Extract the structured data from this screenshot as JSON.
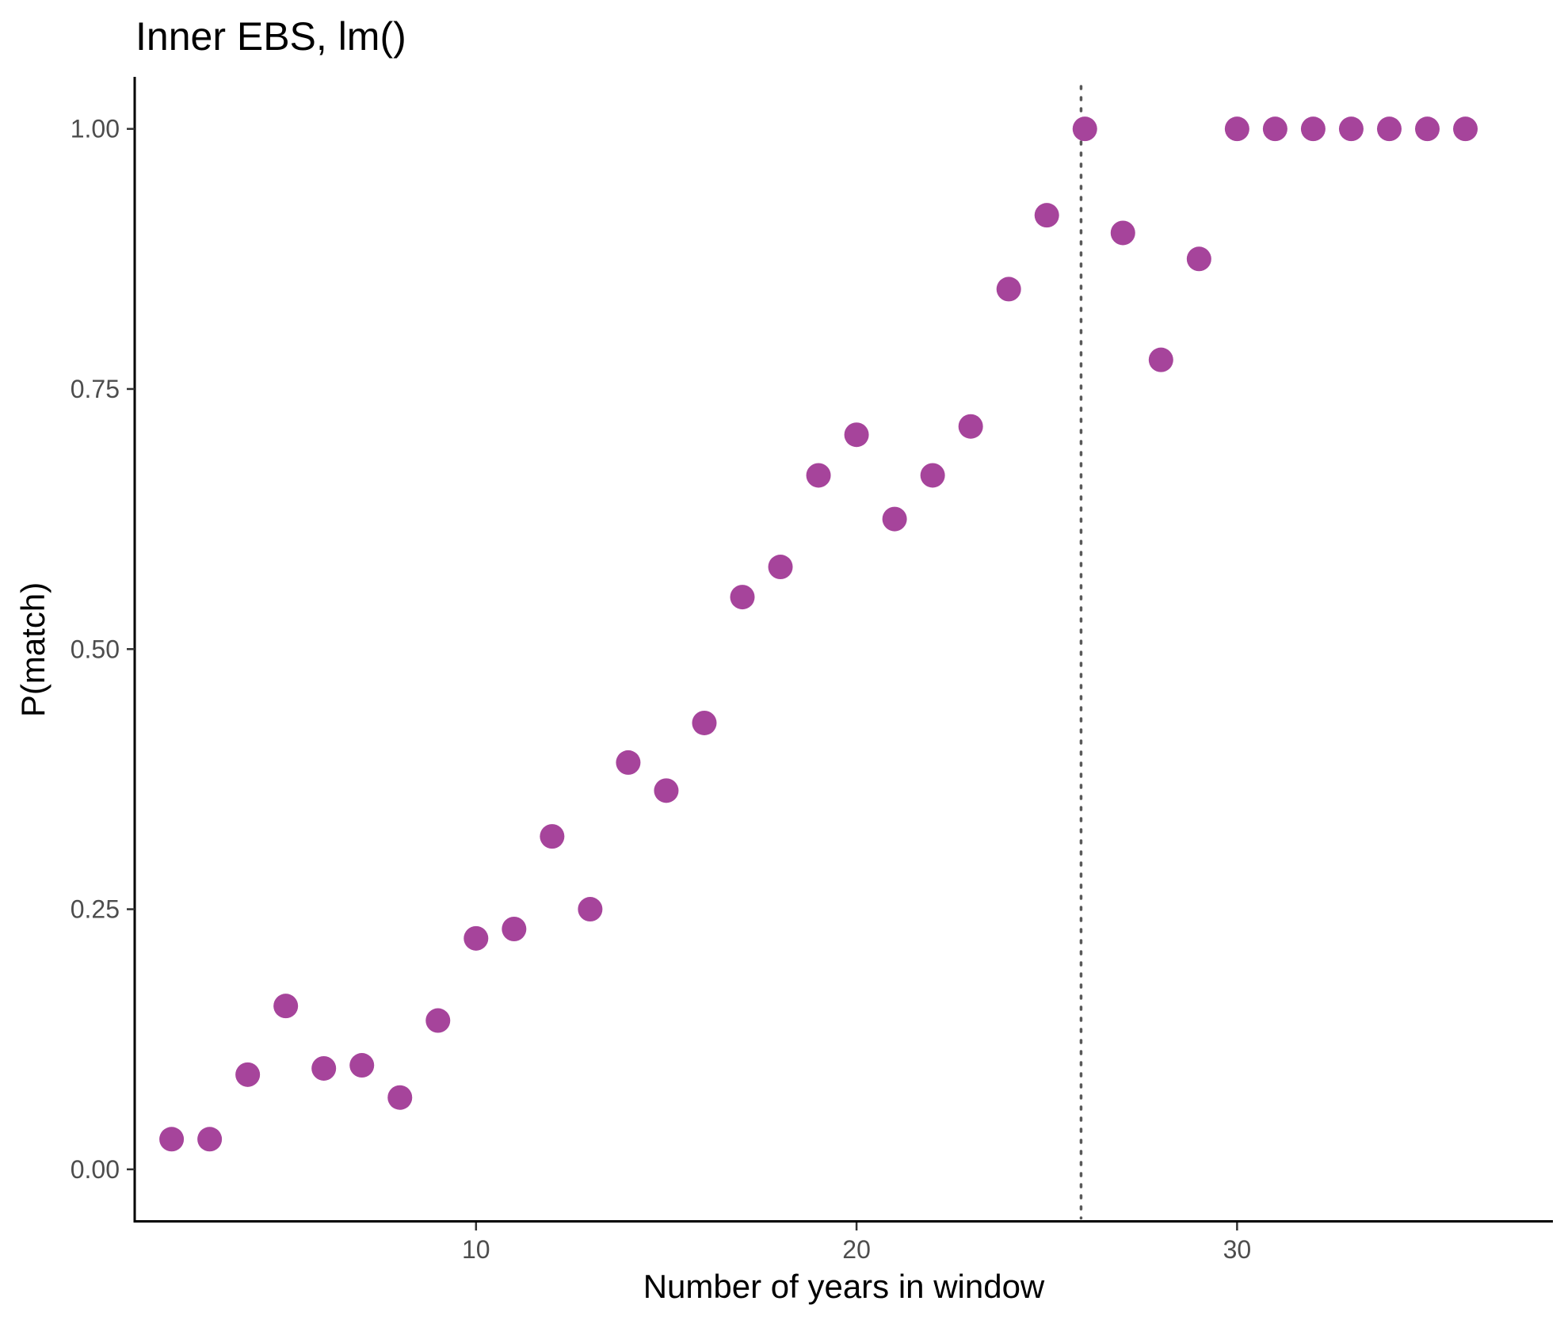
{
  "chart_data": {
    "type": "scatter",
    "title": "Inner EBS, lm()",
    "xlabel": "Number of years in window",
    "ylabel": "P(match)",
    "xlim": [
      1.03,
      38.3
    ],
    "ylim": [
      -0.05,
      1.05
    ],
    "xticks": [
      10,
      20,
      30
    ],
    "xtick_labels": [
      "10",
      "20",
      "30"
    ],
    "yticks": [
      0,
      0.25,
      0.5,
      0.75,
      1
    ],
    "ytick_labels": [
      "0.00",
      "0.25",
      "0.50",
      "0.75",
      "1.00"
    ],
    "grid": false,
    "legend": "none",
    "point_color": "#A6449B",
    "reference_line": {
      "x": 25.9,
      "style": "dotted",
      "color": "#595959"
    },
    "points": [
      {
        "x": 2,
        "y": 0.029
      },
      {
        "x": 3,
        "y": 0.029
      },
      {
        "x": 4,
        "y": 0.091
      },
      {
        "x": 5,
        "y": 0.157
      },
      {
        "x": 6,
        "y": 0.097
      },
      {
        "x": 7,
        "y": 0.1
      },
      {
        "x": 8,
        "y": 0.069
      },
      {
        "x": 9,
        "y": 0.143
      },
      {
        "x": 10,
        "y": 0.222
      },
      {
        "x": 11,
        "y": 0.231
      },
      {
        "x": 12,
        "y": 0.32
      },
      {
        "x": 13,
        "y": 0.25
      },
      {
        "x": 14,
        "y": 0.391
      },
      {
        "x": 15,
        "y": 0.364
      },
      {
        "x": 16,
        "y": 0.429
      },
      {
        "x": 17,
        "y": 0.55
      },
      {
        "x": 18,
        "y": 0.579
      },
      {
        "x": 19,
        "y": 0.667
      },
      {
        "x": 20,
        "y": 0.706
      },
      {
        "x": 21,
        "y": 0.625
      },
      {
        "x": 22,
        "y": 0.667
      },
      {
        "x": 23,
        "y": 0.714
      },
      {
        "x": 24,
        "y": 0.846
      },
      {
        "x": 25,
        "y": 0.917
      },
      {
        "x": 26,
        "y": 1.0
      },
      {
        "x": 27,
        "y": 0.9
      },
      {
        "x": 28,
        "y": 0.778
      },
      {
        "x": 29,
        "y": 0.875
      },
      {
        "x": 30,
        "y": 1.0
      },
      {
        "x": 31,
        "y": 1.0
      },
      {
        "x": 32,
        "y": 1.0
      },
      {
        "x": 33,
        "y": 1.0
      },
      {
        "x": 34,
        "y": 1.0
      },
      {
        "x": 35,
        "y": 1.0
      },
      {
        "x": 36,
        "y": 1.0
      }
    ]
  }
}
